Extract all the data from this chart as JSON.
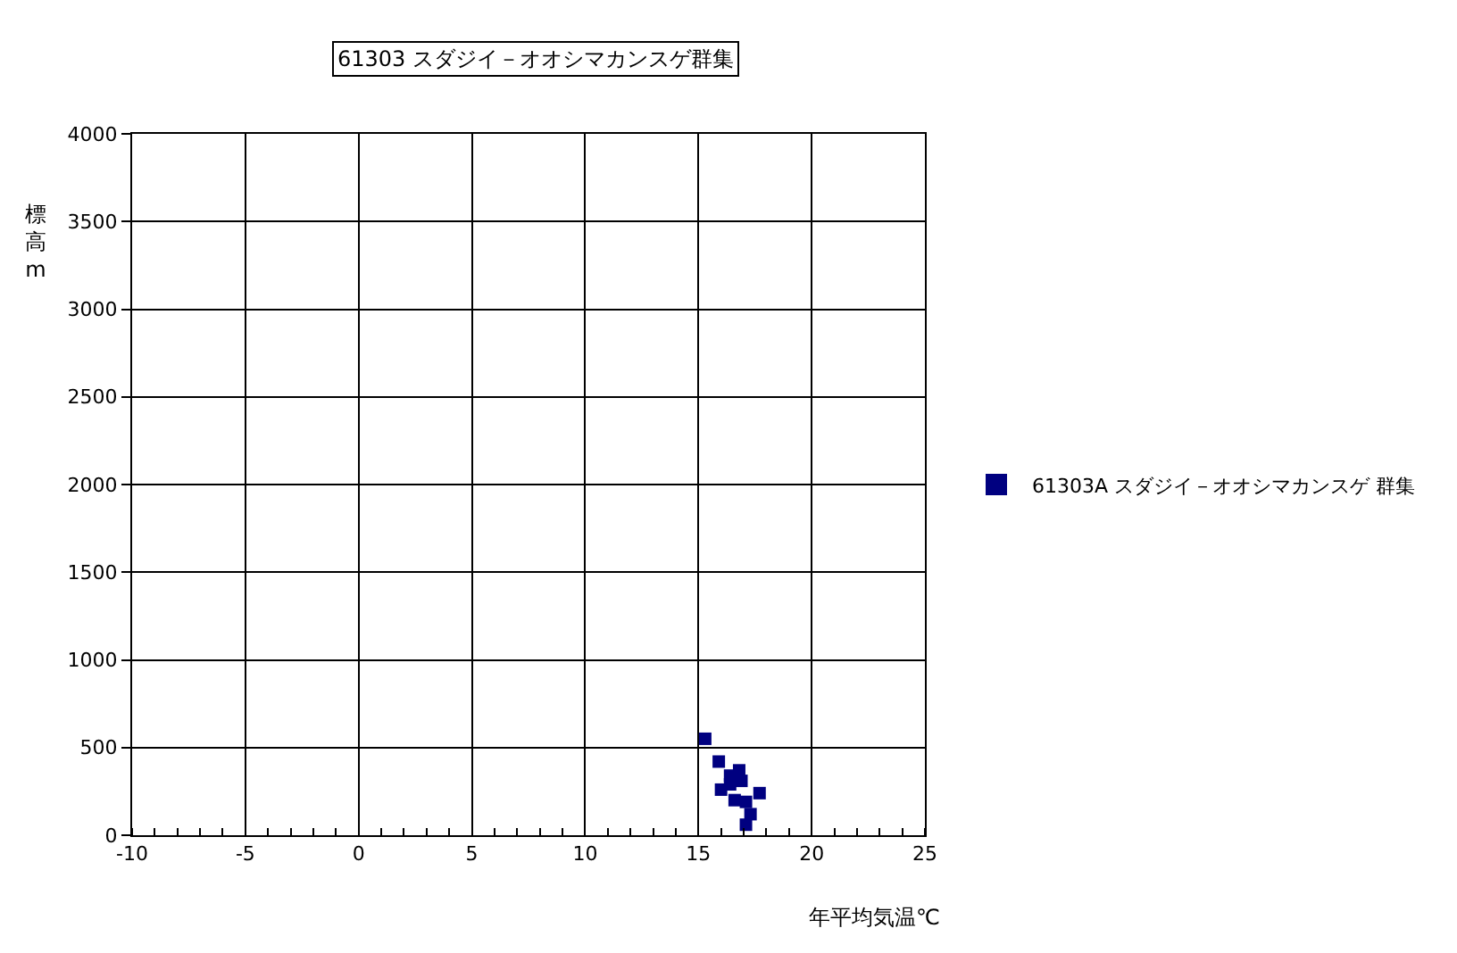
{
  "chart_data": {
    "type": "scatter",
    "title": "61303 スダジイ－オオシマカンスゲ群集",
    "xlabel": "年平均気温℃",
    "ylabel": "標高m",
    "series": [
      {
        "name": "61303A スダジイ－オオシマカンスゲ 群集",
        "color": "#000080",
        "x": [
          15.3,
          15.9,
          16.8,
          16.4,
          16.9,
          16.4,
          16.0,
          17.7,
          16.6,
          17.1,
          17.3,
          17.1
        ],
        "values": [
          550,
          420,
          370,
          340,
          310,
          290,
          260,
          240,
          200,
          190,
          120,
          60
        ]
      }
    ],
    "xlim": [
      -10,
      25
    ],
    "xticks": [
      -10,
      -5,
      0,
      5,
      10,
      15,
      20,
      25
    ],
    "ylim": [
      0,
      4000
    ],
    "yticks": [
      0,
      500,
      1000,
      1500,
      2000,
      2500,
      3000,
      3500,
      4000
    ],
    "grid": true,
    "legend": "right",
    "marker": "square"
  }
}
